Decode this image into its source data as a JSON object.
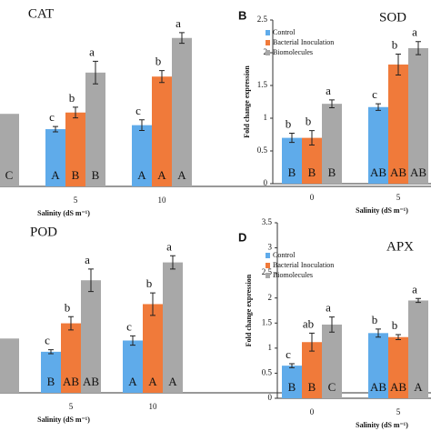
{
  "chart_data": [
    {
      "type": "bar",
      "title": "CAT",
      "xlabel": "Salinity (dS m⁻¹)",
      "categories": [
        null,
        "5",
        "10"
      ],
      "ylim": [
        0,
        2.5
      ],
      "legend": false,
      "series": [
        {
          "name": "Control",
          "color": "#5fabea",
          "values": [
            null,
            0.86,
            0.92
          ],
          "errors": [
            null,
            0.04,
            0.08
          ],
          "letters": [
            null,
            "c",
            "c"
          ],
          "groups": [
            null,
            "A",
            "A"
          ]
        },
        {
          "name": "Bacterial Inoculation",
          "color": "#f07a3a",
          "values": [
            null,
            1.11,
            1.65
          ],
          "errors": [
            null,
            0.08,
            0.09
          ],
          "letters": [
            null,
            "b",
            "b"
          ],
          "groups": [
            null,
            "B",
            "A"
          ]
        },
        {
          "name": "Biomolecules",
          "color": "#a8a8a8",
          "values": [
            1.09,
            1.71,
            2.23
          ],
          "errors": [
            null,
            0.17,
            0.08
          ],
          "letters": [
            null,
            "a",
            "a"
          ],
          "groups": [
            "C",
            "B",
            "A"
          ]
        }
      ]
    },
    {
      "type": "bar",
      "title": "SOD",
      "panel_label": "B",
      "ylabel": "Fold change expression",
      "xlabel": "Salinity (dS m⁻¹)",
      "categories": [
        "0",
        "5"
      ],
      "ylim": [
        0,
        2.5
      ],
      "yticks": [
        0,
        0.5,
        1,
        1.5,
        2,
        2.5
      ],
      "legend": true,
      "series": [
        {
          "name": "Control",
          "color": "#5fabea",
          "values": [
            0.7,
            1.17
          ],
          "errors": [
            0.07,
            0.05
          ],
          "letters": [
            "b",
            "c"
          ],
          "groups": [
            "B",
            "AB"
          ]
        },
        {
          "name": "Bacterial Inoculation",
          "color": "#f07a3a",
          "values": [
            0.7,
            1.82
          ],
          "errors": [
            0.11,
            0.16
          ],
          "letters": [
            "b",
            "b"
          ],
          "groups": [
            "B",
            "AB"
          ]
        },
        {
          "name": "Biomolecules",
          "color": "#a8a8a8",
          "values": [
            1.22,
            2.07
          ],
          "errors": [
            0.06,
            0.1
          ],
          "letters": [
            "a",
            "a"
          ],
          "groups": [
            "B",
            "AB"
          ]
        }
      ]
    },
    {
      "type": "bar",
      "title": "POD",
      "xlabel": "Salinity (dS m⁻¹)",
      "categories": [
        null,
        "5",
        "10"
      ],
      "ylim": [
        0,
        2.5
      ],
      "legend": false,
      "series": [
        {
          "name": "Control",
          "color": "#5fabea",
          "values": [
            null,
            0.62,
            0.79
          ],
          "errors": [
            null,
            0.03,
            0.07
          ],
          "letters": [
            null,
            "c",
            "c"
          ],
          "groups": [
            null,
            "B",
            "A"
          ]
        },
        {
          "name": "Bacterial Inoculation",
          "color": "#f07a3a",
          "values": [
            null,
            1.05,
            1.34
          ],
          "errors": [
            null,
            0.1,
            0.17
          ],
          "letters": [
            null,
            "b",
            "b"
          ],
          "groups": [
            null,
            "AB",
            "A"
          ]
        },
        {
          "name": "Biomolecules",
          "color": "#a8a8a8",
          "values": [
            0.82,
            1.7,
            1.97
          ],
          "errors": [
            null,
            0.17,
            0.1
          ],
          "letters": [
            null,
            "a",
            "a"
          ],
          "groups": [
            null,
            "AB",
            "A"
          ]
        }
      ]
    },
    {
      "type": "bar",
      "title": "APX",
      "panel_label": "D",
      "ylabel": "Fold change expression",
      "xlabel": "Salinity (dS m⁻¹)",
      "categories": [
        "0",
        "5"
      ],
      "ylim": [
        0,
        3.5
      ],
      "yticks": [
        0,
        0.5,
        1,
        1.5,
        2,
        2.5,
        3,
        3.5
      ],
      "legend": true,
      "series": [
        {
          "name": "Control",
          "color": "#5fabea",
          "values": [
            0.65,
            1.3
          ],
          "errors": [
            0.04,
            0.08
          ],
          "letters": [
            "c",
            "b"
          ],
          "groups": [
            "B",
            "AB"
          ]
        },
        {
          "name": "Bacterial Inoculation",
          "color": "#f07a3a",
          "values": [
            1.12,
            1.22
          ],
          "errors": [
            0.18,
            0.05
          ],
          "letters": [
            "ab",
            "b"
          ],
          "groups": [
            "B",
            "AB"
          ]
        },
        {
          "name": "Biomolecules",
          "color": "#a8a8a8",
          "values": [
            1.47,
            1.95
          ],
          "errors": [
            0.15,
            0.04
          ],
          "letters": [
            "a",
            "a"
          ],
          "groups": [
            "C",
            "A"
          ]
        }
      ]
    }
  ]
}
